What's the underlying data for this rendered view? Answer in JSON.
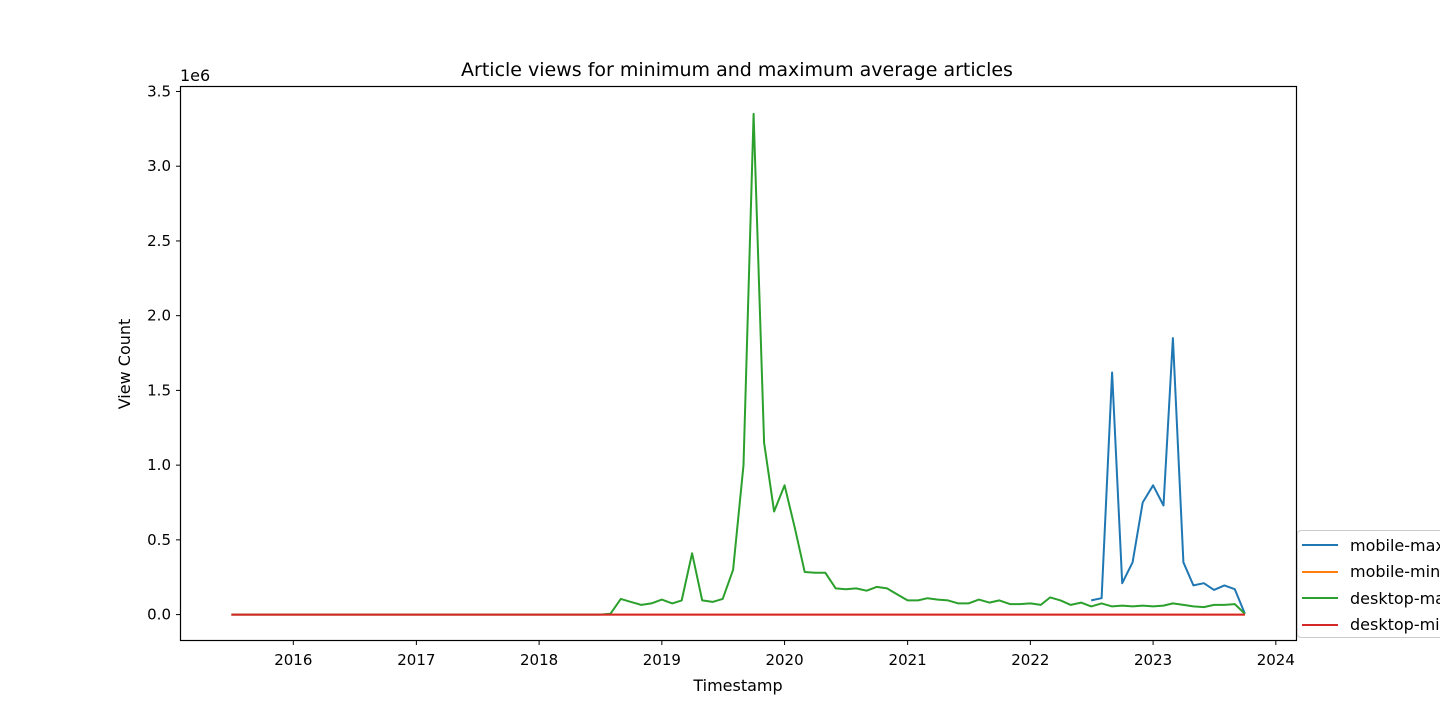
{
  "chart_data": {
    "type": "line",
    "title": "Article views for minimum and maximum average articles",
    "xlabel": "Timestamp",
    "ylabel": "View Count",
    "y_offset_label": "1e6",
    "xlim": [
      "2015-02-01",
      "2024-03-01"
    ],
    "ylim": [
      -170000,
      3530000
    ],
    "x_ticks": [
      {
        "date": "2016-01-01",
        "label": "2016"
      },
      {
        "date": "2017-01-01",
        "label": "2017"
      },
      {
        "date": "2018-01-01",
        "label": "2018"
      },
      {
        "date": "2019-01-01",
        "label": "2019"
      },
      {
        "date": "2020-01-01",
        "label": "2020"
      },
      {
        "date": "2021-01-01",
        "label": "2021"
      },
      {
        "date": "2022-01-01",
        "label": "2022"
      },
      {
        "date": "2023-01-01",
        "label": "2023"
      },
      {
        "date": "2024-01-01",
        "label": "2024"
      }
    ],
    "y_ticks": [
      {
        "value": 0,
        "label": "0.0"
      },
      {
        "value": 500000,
        "label": "0.5"
      },
      {
        "value": 1000000,
        "label": "1.0"
      },
      {
        "value": 1500000,
        "label": "1.5"
      },
      {
        "value": 2000000,
        "label": "2.0"
      },
      {
        "value": 2500000,
        "label": "2.5"
      },
      {
        "value": 3000000,
        "label": "3.0"
      },
      {
        "value": 3500000,
        "label": "3.5"
      }
    ],
    "grid": false,
    "legend_position": "lower-right, outside plot",
    "series": [
      {
        "name": "mobile-max",
        "color": "#1f77b4",
        "points": [
          [
            "2022-07-01",
            95000
          ],
          [
            "2022-08-01",
            110000
          ],
          [
            "2022-09-01",
            1620000
          ],
          [
            "2022-10-01",
            210000
          ],
          [
            "2022-11-01",
            350000
          ],
          [
            "2022-12-01",
            750000
          ],
          [
            "2023-01-01",
            865000
          ],
          [
            "2023-02-01",
            730000
          ],
          [
            "2023-03-01",
            1850000
          ],
          [
            "2023-04-01",
            350000
          ],
          [
            "2023-05-01",
            195000
          ],
          [
            "2023-06-01",
            210000
          ],
          [
            "2023-07-01",
            165000
          ],
          [
            "2023-08-01",
            195000
          ],
          [
            "2023-09-01",
            170000
          ],
          [
            "2023-10-01",
            5000
          ]
        ]
      },
      {
        "name": "mobile-min",
        "color": "#ff7f0e",
        "points": [
          [
            "2015-07-01",
            0
          ],
          [
            "2023-10-01",
            0
          ]
        ]
      },
      {
        "name": "desktop-max",
        "color": "#2ca02c",
        "points": [
          [
            "2015-07-01",
            0
          ],
          [
            "2018-07-01",
            0
          ],
          [
            "2018-08-01",
            5000
          ],
          [
            "2018-09-01",
            105000
          ],
          [
            "2018-10-01",
            85000
          ],
          [
            "2018-11-01",
            65000
          ],
          [
            "2018-12-01",
            75000
          ],
          [
            "2019-01-01",
            100000
          ],
          [
            "2019-02-01",
            75000
          ],
          [
            "2019-03-01",
            95000
          ],
          [
            "2019-04-01",
            410000
          ],
          [
            "2019-05-01",
            95000
          ],
          [
            "2019-06-01",
            85000
          ],
          [
            "2019-07-01",
            105000
          ],
          [
            "2019-08-01",
            300000
          ],
          [
            "2019-09-01",
            1000000
          ],
          [
            "2019-10-01",
            3350000
          ],
          [
            "2019-11-01",
            1150000
          ],
          [
            "2019-12-01",
            690000
          ],
          [
            "2020-01-01",
            865000
          ],
          [
            "2020-02-01",
            575000
          ],
          [
            "2020-03-01",
            285000
          ],
          [
            "2020-04-01",
            280000
          ],
          [
            "2020-05-01",
            280000
          ],
          [
            "2020-06-01",
            175000
          ],
          [
            "2020-07-01",
            170000
          ],
          [
            "2020-08-01",
            175000
          ],
          [
            "2020-09-01",
            160000
          ],
          [
            "2020-10-01",
            185000
          ],
          [
            "2020-11-01",
            175000
          ],
          [
            "2020-12-01",
            135000
          ],
          [
            "2021-01-01",
            95000
          ],
          [
            "2021-02-01",
            95000
          ],
          [
            "2021-03-01",
            110000
          ],
          [
            "2021-04-01",
            100000
          ],
          [
            "2021-05-01",
            95000
          ],
          [
            "2021-06-01",
            75000
          ],
          [
            "2021-07-01",
            75000
          ],
          [
            "2021-08-01",
            100000
          ],
          [
            "2021-09-01",
            80000
          ],
          [
            "2021-10-01",
            95000
          ],
          [
            "2021-11-01",
            70000
          ],
          [
            "2021-12-01",
            70000
          ],
          [
            "2022-01-01",
            75000
          ],
          [
            "2022-02-01",
            65000
          ],
          [
            "2022-03-01",
            115000
          ],
          [
            "2022-04-01",
            95000
          ],
          [
            "2022-05-01",
            65000
          ],
          [
            "2022-06-01",
            80000
          ],
          [
            "2022-07-01",
            55000
          ],
          [
            "2022-08-01",
            75000
          ],
          [
            "2022-09-01",
            55000
          ],
          [
            "2022-10-01",
            60000
          ],
          [
            "2022-11-01",
            55000
          ],
          [
            "2022-12-01",
            60000
          ],
          [
            "2023-01-01",
            55000
          ],
          [
            "2023-02-01",
            60000
          ],
          [
            "2023-03-01",
            75000
          ],
          [
            "2023-04-01",
            65000
          ],
          [
            "2023-05-01",
            55000
          ],
          [
            "2023-06-01",
            50000
          ],
          [
            "2023-07-01",
            65000
          ],
          [
            "2023-08-01",
            65000
          ],
          [
            "2023-09-01",
            70000
          ],
          [
            "2023-10-01",
            5000
          ]
        ]
      },
      {
        "name": "desktop-min",
        "color": "#d62728",
        "points": [
          [
            "2015-07-01",
            0
          ],
          [
            "2023-10-01",
            0
          ]
        ]
      }
    ]
  }
}
